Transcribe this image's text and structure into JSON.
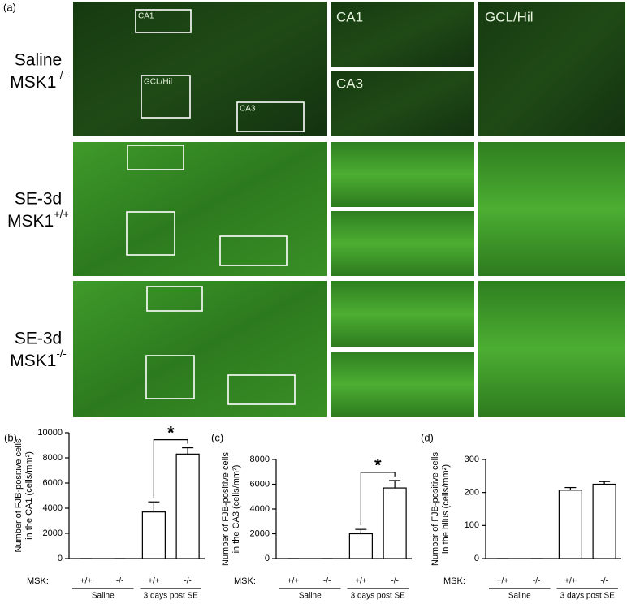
{
  "panel_a": {
    "label": "(a)",
    "rows": [
      {
        "condition": "Saline",
        "genotype": "MSK1",
        "superscript": "-/-"
      },
      {
        "condition": "SE-3d",
        "genotype": "MSK1",
        "superscript": "+/+"
      },
      {
        "condition": "SE-3d",
        "genotype": "MSK1",
        "superscript": "-/-"
      }
    ],
    "overview_boxes": [
      "CA1",
      "GCL/Hil",
      "CA3"
    ],
    "zoom_labels": [
      "CA1",
      "CA3",
      "GCL/Hil"
    ]
  },
  "chart_data": [
    {
      "type": "bar",
      "panel_label": "(b)",
      "ylabel": [
        "Number of FJB-positive cells",
        "in the CA1 (cells/mm²)"
      ],
      "row_label": "MSK:",
      "categories": [
        "+/+",
        "-/-",
        "+/+",
        "-/-"
      ],
      "groups": [
        "Saline",
        "3 days post SE"
      ],
      "values": [
        0,
        0,
        3700,
        8300
      ],
      "errors": [
        0,
        0,
        800,
        500
      ],
      "annotation": "*",
      "ylim": [
        0,
        10000
      ],
      "yticks": [
        0,
        2000,
        4000,
        6000,
        8000,
        10000
      ],
      "color": "#ffffff"
    },
    {
      "type": "bar",
      "panel_label": "(c)",
      "ylabel": [
        "Number of FJB-positive cells",
        "in the CA3 (cells/mm²)"
      ],
      "row_label": "MSK:",
      "categories": [
        "+/+",
        "-/-",
        "+/+",
        "-/-"
      ],
      "groups": [
        "Saline",
        "3 days post SE"
      ],
      "values": [
        0,
        0,
        2000,
        5700
      ],
      "errors": [
        0,
        0,
        350,
        600
      ],
      "annotation": "*",
      "ylim": [
        0,
        8000
      ],
      "yticks": [
        0,
        2000,
        4000,
        6000,
        8000
      ],
      "color": "#ffffff"
    },
    {
      "type": "bar",
      "panel_label": "(d)",
      "ylabel": [
        "Number of FJB-positive cells",
        "in the hilus (cells/mm²)"
      ],
      "row_label": "MSK:",
      "categories": [
        "+/+",
        "-/-",
        "+/+",
        "-/-"
      ],
      "groups": [
        "Saline",
        "3 days post SE"
      ],
      "values": [
        0,
        0,
        207,
        225
      ],
      "errors": [
        0,
        0,
        8,
        8
      ],
      "ylim": [
        0,
        300
      ],
      "yticks": [
        0,
        100,
        200,
        300
      ],
      "color": "#ffffff"
    }
  ]
}
